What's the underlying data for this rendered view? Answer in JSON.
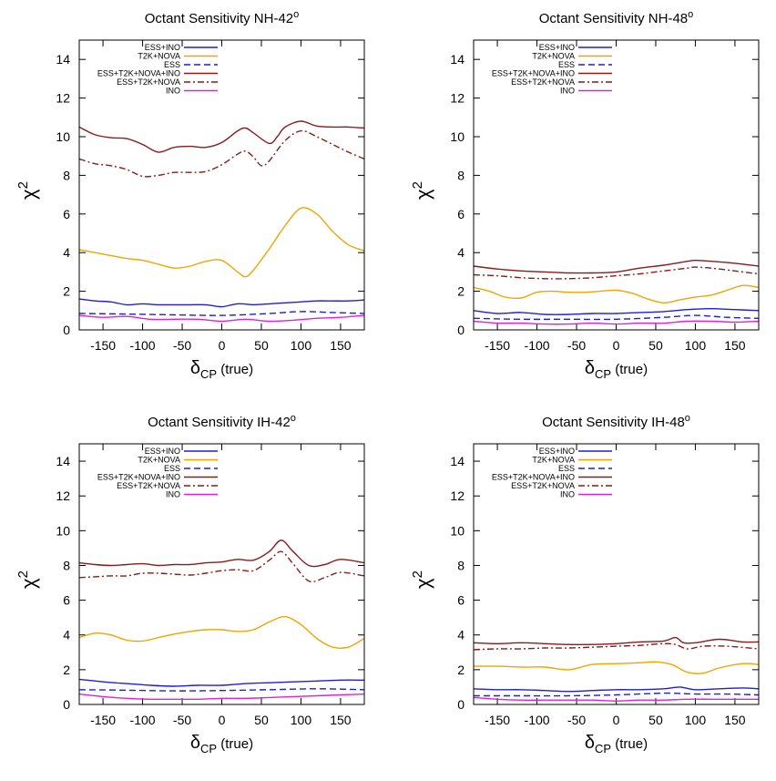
{
  "chart_data": [
    {
      "type": "line",
      "title": "Octant Sensitivity NH-42",
      "title_sup": "o",
      "xlabel_symbol": "δ",
      "xlabel_sub": "CP",
      "xlabel_rest": "(true)",
      "ylabel_symbol": "χ",
      "ylabel_sup": "2",
      "xlim": [
        -180,
        180
      ],
      "ylim": [
        0,
        15
      ],
      "xticks": [
        -150,
        -100,
        -50,
        0,
        50,
        100,
        150
      ],
      "yticks": [
        0,
        2,
        4,
        6,
        8,
        10,
        12,
        14
      ],
      "legend_position": "top-left",
      "series": [
        {
          "name": "ESS+INO",
          "color": "#1f1fd6",
          "dash": "solid",
          "x": [
            -180,
            -160,
            -140,
            -120,
            -100,
            -80,
            -60,
            -40,
            -20,
            0,
            20,
            40,
            60,
            80,
            100,
            120,
            140,
            160,
            180
          ],
          "y": [
            1.6,
            1.5,
            1.45,
            1.3,
            1.35,
            1.3,
            1.3,
            1.3,
            1.3,
            1.2,
            1.35,
            1.3,
            1.35,
            1.4,
            1.45,
            1.5,
            1.5,
            1.5,
            1.55
          ]
        },
        {
          "name": "T2K+NOVA",
          "color": "#f0a400",
          "dash": "solid",
          "x": [
            -180,
            -160,
            -140,
            -120,
            -100,
            -80,
            -60,
            -40,
            -20,
            0,
            20,
            30,
            40,
            60,
            80,
            100,
            120,
            140,
            160,
            180
          ],
          "y": [
            4.15,
            4.0,
            3.85,
            3.7,
            3.6,
            3.4,
            3.2,
            3.3,
            3.55,
            3.6,
            3.0,
            2.75,
            3.1,
            4.2,
            5.4,
            6.3,
            6.0,
            5.1,
            4.4,
            4.1
          ]
        },
        {
          "name": "ESS",
          "color": "#1f1fd6",
          "dash": "dash",
          "x": [
            -180,
            -120,
            -60,
            0,
            60,
            100,
            140,
            180
          ],
          "y": [
            0.85,
            0.82,
            0.78,
            0.75,
            0.85,
            0.95,
            0.9,
            0.85
          ]
        },
        {
          "name": "ESS+T2K+NOVA+INO",
          "color": "#8b1a1a",
          "dash": "solid",
          "x": [
            -180,
            -160,
            -140,
            -120,
            -100,
            -80,
            -60,
            -40,
            -20,
            0,
            20,
            30,
            40,
            60,
            70,
            80,
            100,
            120,
            140,
            160,
            180
          ],
          "y": [
            10.5,
            10.1,
            9.95,
            9.9,
            9.6,
            9.2,
            9.45,
            9.5,
            9.45,
            9.7,
            10.3,
            10.45,
            10.2,
            9.65,
            10.0,
            10.5,
            10.8,
            10.55,
            10.5,
            10.5,
            10.45
          ]
        },
        {
          "name": "ESS+T2K+NOVA",
          "color": "#8b1a1a",
          "dash": "dashdot",
          "x": [
            -180,
            -160,
            -140,
            -120,
            -100,
            -80,
            -60,
            -40,
            -20,
            0,
            20,
            30,
            40,
            50,
            60,
            80,
            100,
            120,
            140,
            160,
            180
          ],
          "y": [
            8.85,
            8.6,
            8.5,
            8.3,
            7.95,
            8.0,
            8.15,
            8.15,
            8.2,
            8.55,
            9.1,
            9.25,
            8.95,
            8.5,
            8.75,
            9.8,
            10.3,
            10.0,
            9.6,
            9.2,
            8.85
          ]
        },
        {
          "name": "INO",
          "color": "#e020e0",
          "dash": "solid",
          "x": [
            -180,
            -150,
            -120,
            -90,
            -60,
            -30,
            0,
            30,
            60,
            90,
            120,
            150,
            180
          ],
          "y": [
            0.75,
            0.65,
            0.7,
            0.55,
            0.55,
            0.55,
            0.45,
            0.55,
            0.45,
            0.5,
            0.6,
            0.65,
            0.75
          ]
        }
      ]
    },
    {
      "type": "line",
      "title": "Octant Sensitivity NH-48",
      "title_sup": "o",
      "xlabel_symbol": "δ",
      "xlabel_sub": "CP",
      "xlabel_rest": "(true)",
      "ylabel_symbol": "χ",
      "ylabel_sup": "2",
      "xlim": [
        -180,
        180
      ],
      "ylim": [
        0,
        15
      ],
      "xticks": [
        -150,
        -100,
        -50,
        0,
        50,
        100,
        150
      ],
      "yticks": [
        0,
        2,
        4,
        6,
        8,
        10,
        12,
        14
      ],
      "legend_position": "top-left",
      "series": [
        {
          "name": "ESS+INO",
          "color": "#1f1fd6",
          "dash": "solid",
          "x": [
            -180,
            -150,
            -120,
            -90,
            -60,
            -30,
            0,
            30,
            60,
            90,
            120,
            150,
            180
          ],
          "y": [
            1.0,
            0.85,
            0.9,
            0.8,
            0.8,
            0.85,
            0.85,
            0.9,
            0.95,
            1.05,
            1.1,
            1.05,
            1.0
          ]
        },
        {
          "name": "T2K+NOVA",
          "color": "#f0a400",
          "dash": "solid",
          "x": [
            -180,
            -160,
            -140,
            -120,
            -100,
            -80,
            -60,
            -40,
            -20,
            0,
            20,
            40,
            60,
            80,
            100,
            120,
            140,
            160,
            180
          ],
          "y": [
            2.2,
            2.0,
            1.7,
            1.65,
            1.95,
            2.0,
            1.95,
            1.95,
            2.0,
            2.05,
            1.9,
            1.6,
            1.4,
            1.55,
            1.7,
            1.8,
            2.05,
            2.3,
            2.2
          ]
        },
        {
          "name": "ESS",
          "color": "#1f1fd6",
          "dash": "dash",
          "x": [
            -180,
            -120,
            -60,
            0,
            60,
            100,
            140,
            180
          ],
          "y": [
            0.6,
            0.55,
            0.55,
            0.55,
            0.65,
            0.75,
            0.65,
            0.6
          ]
        },
        {
          "name": "ESS+T2K+NOVA+INO",
          "color": "#8b1a1a",
          "dash": "solid",
          "x": [
            -180,
            -150,
            -120,
            -90,
            -60,
            -30,
            0,
            30,
            60,
            90,
            100,
            120,
            150,
            180
          ],
          "y": [
            3.3,
            3.15,
            3.05,
            3.0,
            2.95,
            2.95,
            3.0,
            3.2,
            3.35,
            3.55,
            3.6,
            3.55,
            3.45,
            3.3
          ]
        },
        {
          "name": "ESS+T2K+NOVA",
          "color": "#8b1a1a",
          "dash": "dashdot",
          "x": [
            -180,
            -150,
            -120,
            -90,
            -60,
            -30,
            0,
            30,
            60,
            90,
            100,
            120,
            150,
            180
          ],
          "y": [
            2.85,
            2.8,
            2.7,
            2.65,
            2.65,
            2.7,
            2.8,
            2.9,
            3.05,
            3.2,
            3.25,
            3.2,
            3.05,
            2.9
          ]
        },
        {
          "name": "INO",
          "color": "#e020e0",
          "dash": "solid",
          "x": [
            -180,
            -150,
            -120,
            -90,
            -60,
            -30,
            0,
            30,
            60,
            90,
            120,
            150,
            180
          ],
          "y": [
            0.45,
            0.35,
            0.35,
            0.3,
            0.3,
            0.35,
            0.3,
            0.35,
            0.35,
            0.45,
            0.45,
            0.4,
            0.45
          ]
        }
      ]
    },
    {
      "type": "line",
      "title": "Octant Sensitivity IH-42",
      "title_sup": "o",
      "xlabel_symbol": "δ",
      "xlabel_sub": "CP",
      "xlabel_rest": "(true)",
      "ylabel_symbol": "χ",
      "ylabel_sup": "2",
      "xlim": [
        -180,
        180
      ],
      "ylim": [
        0,
        15
      ],
      "xticks": [
        -150,
        -100,
        -50,
        0,
        50,
        100,
        150
      ],
      "yticks": [
        0,
        2,
        4,
        6,
        8,
        10,
        12,
        14
      ],
      "legend_position": "top-left",
      "series": [
        {
          "name": "ESS+INO",
          "color": "#1f1fd6",
          "dash": "solid",
          "x": [
            -180,
            -150,
            -120,
            -90,
            -60,
            -30,
            0,
            30,
            60,
            90,
            120,
            150,
            180
          ],
          "y": [
            1.45,
            1.3,
            1.2,
            1.1,
            1.05,
            1.1,
            1.1,
            1.2,
            1.25,
            1.3,
            1.35,
            1.4,
            1.4
          ]
        },
        {
          "name": "T2K+NOVA",
          "color": "#f0a400",
          "dash": "solid",
          "x": [
            -180,
            -160,
            -140,
            -120,
            -100,
            -80,
            -60,
            -40,
            -20,
            0,
            20,
            40,
            60,
            80,
            100,
            120,
            140,
            160,
            180
          ],
          "y": [
            3.85,
            4.1,
            4.0,
            3.7,
            3.65,
            3.85,
            4.05,
            4.2,
            4.3,
            4.3,
            4.2,
            4.3,
            4.75,
            5.05,
            4.6,
            3.8,
            3.3,
            3.3,
            3.8
          ]
        },
        {
          "name": "ESS",
          "color": "#1f1fd6",
          "dash": "dash",
          "x": [
            -180,
            -120,
            -60,
            0,
            60,
            120,
            180
          ],
          "y": [
            0.85,
            0.82,
            0.78,
            0.8,
            0.85,
            0.9,
            0.85
          ]
        },
        {
          "name": "ESS+T2K+NOVA+INO",
          "color": "#8b1a1a",
          "dash": "solid",
          "x": [
            -180,
            -160,
            -140,
            -120,
            -100,
            -80,
            -60,
            -40,
            -20,
            0,
            20,
            40,
            60,
            75,
            90,
            110,
            130,
            150,
            180
          ],
          "y": [
            8.15,
            8.05,
            8.0,
            8.05,
            8.1,
            8.0,
            8.05,
            8.05,
            8.15,
            8.2,
            8.35,
            8.3,
            8.8,
            9.45,
            8.8,
            8.0,
            8.05,
            8.35,
            8.15
          ]
        },
        {
          "name": "ESS+T2K+NOVA",
          "color": "#8b1a1a",
          "dash": "dashdot",
          "x": [
            -180,
            -160,
            -140,
            -120,
            -100,
            -80,
            -60,
            -40,
            -20,
            0,
            20,
            40,
            60,
            75,
            90,
            110,
            130,
            150,
            180
          ],
          "y": [
            7.3,
            7.35,
            7.4,
            7.4,
            7.55,
            7.55,
            7.5,
            7.45,
            7.55,
            7.7,
            7.75,
            7.7,
            8.3,
            8.8,
            8.1,
            7.1,
            7.3,
            7.6,
            7.4
          ]
        },
        {
          "name": "INO",
          "color": "#e020e0",
          "dash": "solid",
          "x": [
            -180,
            -150,
            -120,
            -90,
            -60,
            -30,
            0,
            30,
            60,
            90,
            120,
            150,
            180
          ],
          "y": [
            0.6,
            0.45,
            0.35,
            0.3,
            0.3,
            0.3,
            0.35,
            0.35,
            0.4,
            0.45,
            0.5,
            0.55,
            0.6
          ]
        }
      ]
    },
    {
      "type": "line",
      "title": "Octant Sensitivity IH-48",
      "title_sup": "o",
      "xlabel_symbol": "δ",
      "xlabel_sub": "CP",
      "xlabel_rest": "(true)",
      "ylabel_symbol": "χ",
      "ylabel_sup": "2",
      "xlim": [
        -180,
        180
      ],
      "ylim": [
        0,
        15
      ],
      "xticks": [
        -150,
        -100,
        -50,
        0,
        50,
        100,
        150
      ],
      "yticks": [
        0,
        2,
        4,
        6,
        8,
        10,
        12,
        14
      ],
      "legend_position": "top-left",
      "series": [
        {
          "name": "ESS+INO",
          "color": "#1f1fd6",
          "dash": "solid",
          "x": [
            -180,
            -150,
            -120,
            -90,
            -60,
            -30,
            0,
            30,
            60,
            80,
            100,
            130,
            160,
            180
          ],
          "y": [
            0.9,
            0.85,
            0.85,
            0.8,
            0.75,
            0.8,
            0.85,
            0.85,
            0.9,
            1.0,
            0.85,
            0.9,
            0.95,
            0.9
          ]
        },
        {
          "name": "T2K+NOVA",
          "color": "#f0a400",
          "dash": "solid",
          "x": [
            -180,
            -150,
            -120,
            -90,
            -60,
            -30,
            0,
            30,
            50,
            70,
            90,
            110,
            130,
            160,
            180
          ],
          "y": [
            2.2,
            2.2,
            2.15,
            2.15,
            2.0,
            2.3,
            2.35,
            2.4,
            2.45,
            2.3,
            1.85,
            1.8,
            2.1,
            2.35,
            2.3
          ]
        },
        {
          "name": "ESS",
          "color": "#1f1fd6",
          "dash": "dash",
          "x": [
            -180,
            -120,
            -60,
            0,
            60,
            100,
            140,
            180
          ],
          "y": [
            0.5,
            0.5,
            0.5,
            0.55,
            0.65,
            0.6,
            0.6,
            0.55
          ]
        },
        {
          "name": "ESS+T2K+NOVA+INO",
          "color": "#8b1a1a",
          "dash": "solid",
          "x": [
            -180,
            -150,
            -120,
            -90,
            -60,
            -30,
            0,
            30,
            60,
            75,
            85,
            100,
            130,
            160,
            180
          ],
          "y": [
            3.55,
            3.5,
            3.55,
            3.5,
            3.45,
            3.45,
            3.5,
            3.6,
            3.65,
            3.85,
            3.55,
            3.55,
            3.75,
            3.6,
            3.6
          ]
        },
        {
          "name": "ESS+T2K+NOVA",
          "color": "#8b1a1a",
          "dash": "dashdot",
          "x": [
            -180,
            -150,
            -120,
            -90,
            -60,
            -30,
            0,
            30,
            60,
            75,
            90,
            110,
            140,
            180
          ],
          "y": [
            3.15,
            3.2,
            3.2,
            3.25,
            3.25,
            3.3,
            3.35,
            3.4,
            3.5,
            3.45,
            3.2,
            3.35,
            3.35,
            3.2
          ]
        },
        {
          "name": "INO",
          "color": "#e020e0",
          "dash": "solid",
          "x": [
            -180,
            -150,
            -120,
            -90,
            -60,
            -30,
            0,
            30,
            60,
            90,
            120,
            150,
            180
          ],
          "y": [
            0.4,
            0.3,
            0.25,
            0.25,
            0.25,
            0.25,
            0.2,
            0.25,
            0.25,
            0.3,
            0.3,
            0.3,
            0.3
          ]
        }
      ]
    }
  ]
}
